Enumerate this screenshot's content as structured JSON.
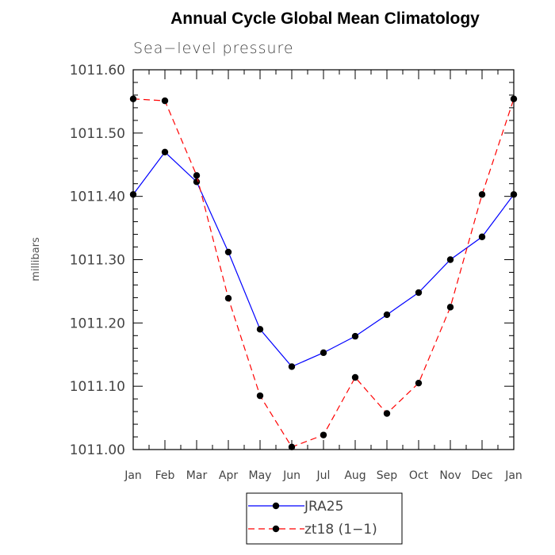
{
  "chart_data": {
    "type": "line",
    "title": "Annual Cycle Global Mean Climatology",
    "subtitle": "Sea−level pressure",
    "ylabel": "millibars",
    "xlabel": "",
    "ylim": [
      1011.0,
      1011.6
    ],
    "yticks": [
      "1011.00",
      "1011.10",
      "1011.20",
      "1011.30",
      "1011.40",
      "1011.50",
      "1011.60"
    ],
    "categories": [
      "Jan",
      "Feb",
      "Mar",
      "Apr",
      "May",
      "Jun",
      "Jul",
      "Aug",
      "Sep",
      "Oct",
      "Nov",
      "Dec",
      "Jan"
    ],
    "series": [
      {
        "name": "JRA25",
        "color": "#0000ff",
        "dash": "solid",
        "values": [
          1011.403,
          1011.47,
          1011.423,
          1011.312,
          1011.19,
          1011.131,
          1011.153,
          1011.179,
          1011.213,
          1011.248,
          1011.3,
          1011.336,
          1011.403
        ]
      },
      {
        "name": "zt18 (1−1)",
        "color": "#ff0000",
        "dash": "dashed",
        "values": [
          1011.554,
          1011.551,
          1011.433,
          1011.239,
          1011.085,
          1011.004,
          1011.023,
          1011.114,
          1011.057,
          1011.105,
          1011.225,
          1011.403,
          1011.554
        ]
      }
    ],
    "grid": false,
    "legend_position": "bottom-center"
  }
}
